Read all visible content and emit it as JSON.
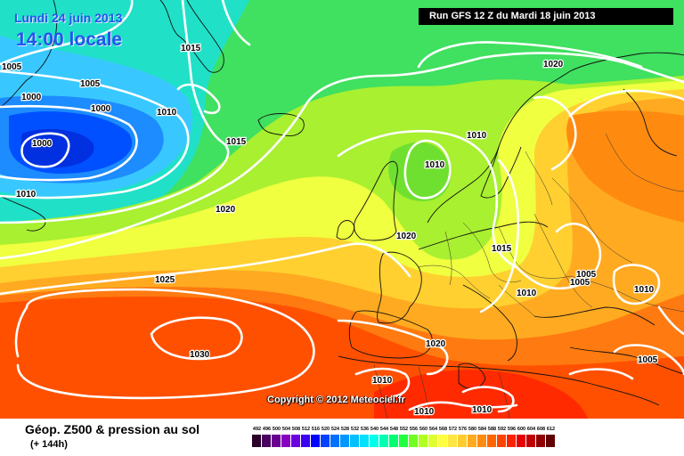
{
  "header": {
    "date_line": "Lundi 24 juin 2013",
    "time_line": "14:00 locale",
    "run_line": "Run GFS 12 Z du Mardi 18 juin 2013"
  },
  "copyright": "Copyright © 2012 Meteociel.fr",
  "footer": {
    "field_title": "Géop. Z500 & pression au sol",
    "forecast_hour": "(+ 144h)"
  },
  "legend": {
    "values": [
      "492",
      "496",
      "500",
      "504",
      "508",
      "512",
      "516",
      "520",
      "524",
      "528",
      "532",
      "536",
      "540",
      "544",
      "548",
      "552",
      "556",
      "560",
      "564",
      "568",
      "572",
      "576",
      "580",
      "584",
      "588",
      "592",
      "596",
      "600",
      "604",
      "608",
      "612"
    ],
    "colors": [
      "#2a002a",
      "#4a0060",
      "#6a0090",
      "#8800c0",
      "#6a00e0",
      "#3a00f0",
      "#0000ff",
      "#0040ff",
      "#0070ff",
      "#0098ff",
      "#00c0ff",
      "#00e0ff",
      "#00ffe8",
      "#00ffb0",
      "#00ff70",
      "#20ff40",
      "#70ff20",
      "#b0ff20",
      "#e0ff30",
      "#ffff40",
      "#ffe640",
      "#ffcc30",
      "#ffaa20",
      "#ff8a10",
      "#ff6600",
      "#ff4400",
      "#ff2200",
      "#e60000",
      "#c00000",
      "#900000",
      "#600000"
    ]
  },
  "isobar_labels": [
    "1005",
    "1000",
    "1005",
    "1000",
    "1000",
    "1010",
    "1015",
    "1010",
    "1015",
    "1020",
    "1025",
    "1030",
    "1020",
    "1010",
    "1010",
    "1015",
    "1005",
    "1010",
    "1005",
    "1010",
    "1020",
    "1005",
    "1010",
    "1010",
    "1010",
    "1020"
  ]
}
